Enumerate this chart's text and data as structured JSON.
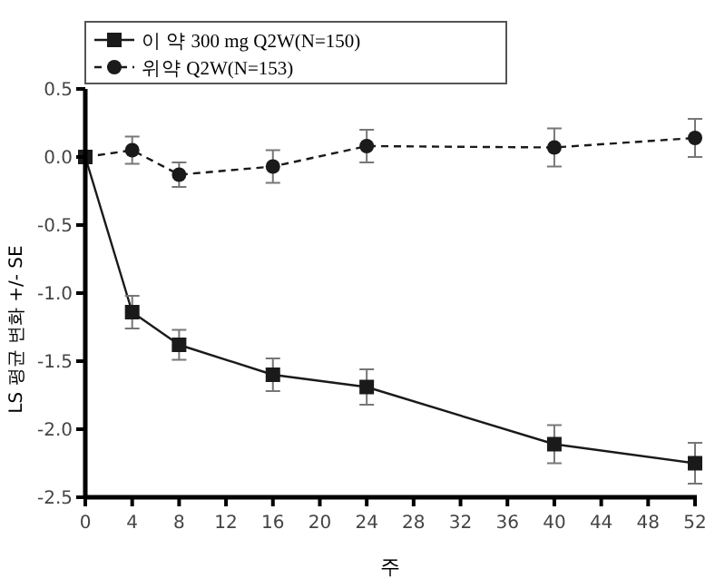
{
  "chart_data": {
    "type": "line",
    "xlabel": "주",
    "ylabel": "LS 평균 변화 +/- SE",
    "x": [
      0,
      4,
      8,
      16,
      24,
      40,
      52
    ],
    "series": [
      {
        "name": "이 약 300 mg Q2W(N=150)",
        "color": "#1a1a1a",
        "marker": "square",
        "line_style": "solid",
        "values": [
          0,
          -1.14,
          -1.38,
          -1.6,
          -1.69,
          -2.11,
          -2.25
        ],
        "errors": [
          null,
          0.12,
          0.11,
          0.12,
          0.13,
          0.14,
          0.15
        ]
      },
      {
        "name": "위약 Q2W(N=153)",
        "color": "#1a1a1a",
        "marker": "circle",
        "line_style": "dashed",
        "values": [
          0,
          0.05,
          -0.13,
          -0.07,
          0.08,
          0.07,
          0.14
        ],
        "errors": [
          null,
          0.1,
          0.09,
          0.12,
          0.12,
          0.14,
          0.14
        ]
      }
    ],
    "xlim": [
      0,
      52
    ],
    "xticks": [
      0,
      4,
      8,
      12,
      16,
      20,
      24,
      28,
      32,
      36,
      40,
      44,
      48,
      52
    ],
    "ylim": [
      -2.5,
      0.5
    ],
    "yticks": [
      -2.5,
      {
        "value": -2,
        "label": "-2.0"
      },
      -1.5,
      {
        "value": -1,
        "label": "-1.0"
      },
      -0.5,
      {
        "value": 0,
        "label": "0.0"
      },
      0.5
    ],
    "grid": false,
    "legend": "top left"
  }
}
